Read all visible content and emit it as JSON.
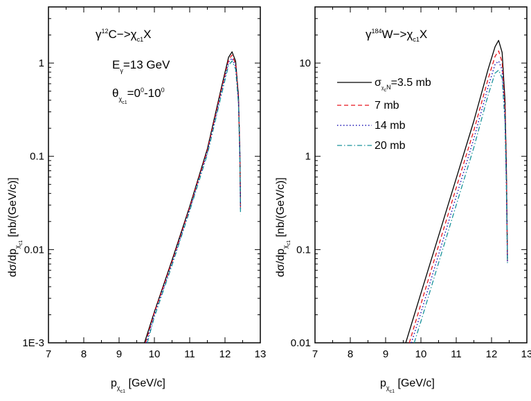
{
  "chart_data": [
    {
      "type": "line",
      "yscale": "log",
      "xlim": [
        7,
        13
      ],
      "ylim": [
        0.001,
        4
      ],
      "x_ticks": [
        7,
        8,
        9,
        10,
        11,
        12,
        13
      ],
      "x_tick_labels": [
        "7",
        "8",
        "9",
        "10",
        "11",
        "12",
        "13"
      ],
      "y_ticks": [
        0.001,
        0.01,
        0.1,
        1
      ],
      "y_tick_labels": [
        "1E-3",
        "0.01",
        "0.1",
        "1"
      ],
      "xlabel": {
        "main": "p",
        "sub": "χ",
        "subsub": "c1",
        "rest": " [GeV/c]"
      },
      "ylabel": {
        "main": "dσ/dp",
        "sub": "χ",
        "subsub": "c1",
        "rest": "  [nb/(GeV/c)]"
      },
      "annotations": {
        "reaction": {
          "gamma": "γ",
          "sup": "12",
          "target": "C",
          "arrow": "−>",
          "chi": "χ",
          "sub": "c1",
          "rest": "X"
        },
        "energy": {
          "main": "E",
          "sub": "γ",
          "rest": "=13 GeV"
        },
        "angle": {
          "main": "θ",
          "sub": "χ",
          "subsub": "c1",
          "eq": "=0",
          "sup1": "0",
          "dash": "-10",
          "sup2": "0"
        }
      },
      "series": [
        {
          "style": "solid",
          "color": "#000000",
          "x": [
            9.72,
            10.0,
            10.5,
            11.0,
            11.5,
            11.9,
            12.1,
            12.2,
            12.3,
            12.38,
            12.42,
            12.44
          ],
          "y": [
            0.001,
            0.00215,
            0.0077,
            0.029,
            0.12,
            0.55,
            1.15,
            1.32,
            1.05,
            0.45,
            0.12,
            0.03
          ]
        },
        {
          "style": "dashed",
          "color": "#e8141c",
          "x": [
            9.75,
            10.0,
            10.5,
            11.0,
            11.5,
            11.9,
            12.1,
            12.2,
            12.3,
            12.38,
            12.42,
            12.44
          ],
          "y": [
            0.001,
            0.0021,
            0.0074,
            0.028,
            0.115,
            0.52,
            1.08,
            1.22,
            0.98,
            0.42,
            0.11,
            0.028
          ]
        },
        {
          "style": "dotted",
          "color": "#1a14b4",
          "x": [
            9.77,
            10.0,
            10.5,
            11.0,
            11.5,
            11.9,
            12.1,
            12.2,
            12.3,
            12.38,
            12.42,
            12.44
          ],
          "y": [
            0.001,
            0.002,
            0.0071,
            0.027,
            0.11,
            0.49,
            1.02,
            1.13,
            0.92,
            0.4,
            0.105,
            0.026
          ]
        },
        {
          "style": "dashdot",
          "color": "#18929a",
          "x": [
            9.8,
            10.0,
            10.5,
            11.0,
            11.5,
            11.9,
            12.1,
            12.2,
            12.3,
            12.38,
            12.42,
            12.44
          ],
          "y": [
            0.001,
            0.0019,
            0.0068,
            0.026,
            0.105,
            0.46,
            0.95,
            1.05,
            0.86,
            0.37,
            0.1,
            0.024
          ]
        }
      ]
    },
    {
      "type": "line",
      "yscale": "log",
      "xlim": [
        7,
        13
      ],
      "ylim": [
        0.01,
        40
      ],
      "x_ticks": [
        7,
        8,
        9,
        10,
        11,
        12,
        13
      ],
      "x_tick_labels": [
        "7",
        "8",
        "9",
        "10",
        "11",
        "12",
        "13"
      ],
      "y_ticks": [
        0.01,
        0.1,
        1,
        10
      ],
      "y_tick_labels": [
        "0.01",
        "0.1",
        "1",
        "10"
      ],
      "xlabel": {
        "main": "p",
        "sub": "χ",
        "subsub": "c1",
        "rest": " [GeV/c]"
      },
      "ylabel": {
        "main": "dσ/dp",
        "sub": "χ",
        "subsub": "c1",
        "rest": "  [nb/(GeV/c)]"
      },
      "annotations": {
        "reaction": {
          "gamma": "γ",
          "sup": "184",
          "target": "W",
          "arrow": "−>",
          "chi": "χ",
          "sub": "c1",
          "rest": "X"
        }
      },
      "legend": {
        "placement": "right-center",
        "entries": [
          {
            "main": "σ",
            "sub": "χ",
            "subsub": "c",
            "sub2": "N",
            "rest": "=3.5 mb"
          },
          {
            "main": "7 mb"
          },
          {
            "main": "14 mb"
          },
          {
            "main": "20 mb"
          }
        ]
      },
      "series": [
        {
          "style": "solid",
          "color": "#000000",
          "x": [
            9.57,
            10.0,
            10.5,
            11.0,
            11.5,
            11.9,
            12.1,
            12.2,
            12.3,
            12.38,
            12.42,
            12.45
          ],
          "y": [
            0.01,
            0.034,
            0.14,
            0.58,
            2.4,
            8.5,
            15.0,
            17.5,
            13.0,
            4.0,
            0.8,
            0.08
          ]
        },
        {
          "style": "dashed",
          "color": "#e8141c",
          "x": [
            9.67,
            10.0,
            10.5,
            11.0,
            11.5,
            11.9,
            12.1,
            12.2,
            12.3,
            12.38,
            12.42,
            12.45
          ],
          "y": [
            0.01,
            0.026,
            0.11,
            0.46,
            1.9,
            6.7,
            11.8,
            13.5,
            10.2,
            3.2,
            0.65,
            0.075
          ]
        },
        {
          "style": "dotted",
          "color": "#1a14b4",
          "x": [
            9.73,
            10.0,
            10.5,
            11.0,
            11.5,
            11.9,
            12.1,
            12.2,
            12.3,
            12.38,
            12.42,
            12.45
          ],
          "y": [
            0.01,
            0.021,
            0.088,
            0.37,
            1.55,
            5.5,
            9.7,
            10.5,
            8.5,
            2.7,
            0.55,
            0.072
          ]
        },
        {
          "style": "dashdot",
          "color": "#18929a",
          "x": [
            9.81,
            10.0,
            10.5,
            11.0,
            11.5,
            11.9,
            12.1,
            12.2,
            12.3,
            12.38,
            12.42,
            12.45
          ],
          "y": [
            0.01,
            0.017,
            0.072,
            0.3,
            1.25,
            4.5,
            7.8,
            8.4,
            6.9,
            2.3,
            0.47,
            0.07
          ]
        }
      ]
    }
  ]
}
